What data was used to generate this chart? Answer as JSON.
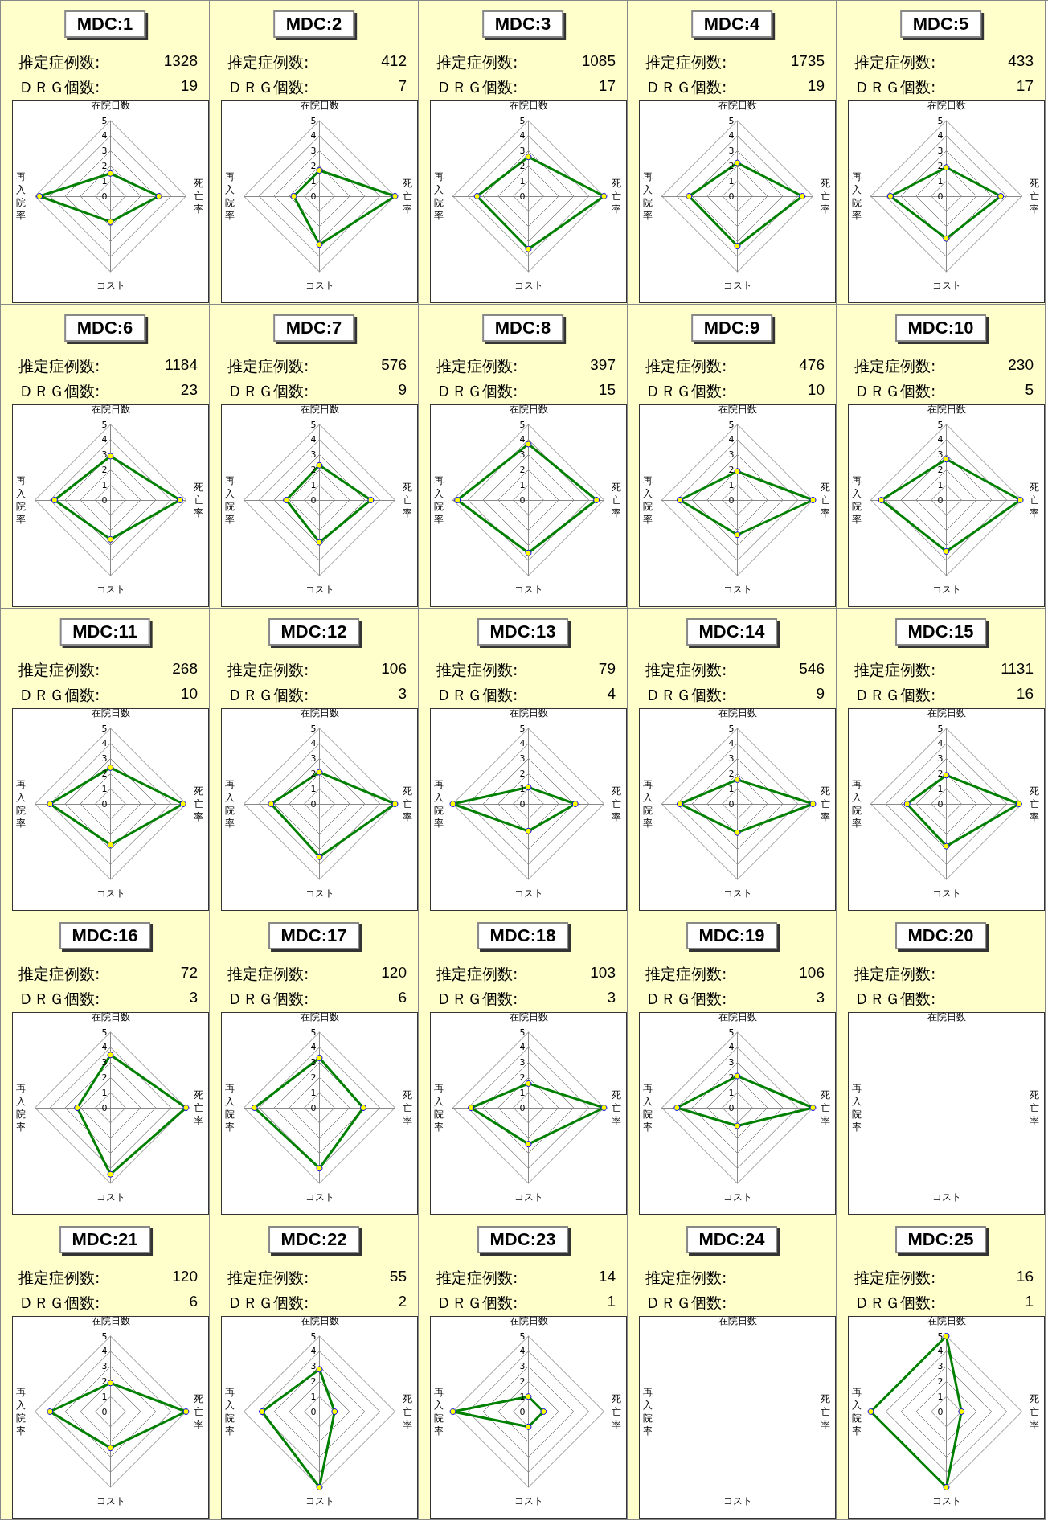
{
  "chart_data": [
    {
      "type": "radar",
      "title": "MDC:1",
      "annotations": [
        "推定症例数:",
        "1328",
        "ＤＲＧ個数:",
        "19"
      ],
      "categories": [
        "在院日数",
        "死亡率",
        "コスト",
        "再入院率"
      ],
      "series": [
        {
          "color": "#008000",
          "values": [
            1.5,
            3.2,
            1.7,
            4.7
          ]
        }
      ],
      "ylim": [
        0,
        5
      ],
      "yticks": [
        0,
        1,
        2,
        3,
        4,
        5
      ],
      "grid": true,
      "marker": "circle"
    },
    {
      "type": "radar",
      "title": "MDC:2",
      "annotations": [
        "推定症例数:",
        "412",
        "ＤＲＧ個数:",
        "7"
      ],
      "categories": [
        "在院日数",
        "死亡率",
        "コスト",
        "再入院率"
      ],
      "series": [
        {
          "color": "#008000",
          "values": [
            1.7,
            5.0,
            3.2,
            1.7
          ]
        }
      ],
      "ylim": [
        0,
        5
      ],
      "yticks": [
        0,
        1,
        2,
        3,
        4,
        5
      ],
      "grid": true,
      "marker": "circle"
    },
    {
      "type": "radar",
      "title": "MDC:3",
      "annotations": [
        "推定症例数:",
        "1085",
        "ＤＲＧ個数:",
        "17"
      ],
      "categories": [
        "在院日数",
        "死亡率",
        "コスト",
        "再入院率"
      ],
      "series": [
        {
          "color": "#008000",
          "values": [
            2.6,
            5.0,
            3.5,
            3.4
          ]
        }
      ],
      "ylim": [
        0,
        5
      ],
      "yticks": [
        0,
        1,
        2,
        3,
        4,
        5
      ],
      "grid": true,
      "marker": "circle"
    },
    {
      "type": "radar",
      "title": "MDC:4",
      "annotations": [
        "推定症例数:",
        "1735",
        "ＤＲＧ個数:",
        "19"
      ],
      "categories": [
        "在院日数",
        "死亡率",
        "コスト",
        "再入院率"
      ],
      "series": [
        {
          "color": "#008000",
          "values": [
            2.2,
            4.3,
            3.3,
            3.2
          ]
        }
      ],
      "ylim": [
        0,
        5
      ],
      "yticks": [
        0,
        1,
        2,
        3,
        4,
        5
      ],
      "grid": true,
      "marker": "circle"
    },
    {
      "type": "radar",
      "title": "MDC:5",
      "annotations": [
        "推定症例数:",
        "433",
        "ＤＲＧ個数:",
        "17"
      ],
      "categories": [
        "在院日数",
        "死亡率",
        "コスト",
        "再入院率"
      ],
      "series": [
        {
          "color": "#008000",
          "values": [
            1.9,
            3.6,
            2.8,
            3.7
          ]
        }
      ],
      "ylim": [
        0,
        5
      ],
      "yticks": [
        0,
        1,
        2,
        3,
        4,
        5
      ],
      "grid": true,
      "marker": "circle"
    },
    {
      "type": "radar",
      "title": "MDC:6",
      "annotations": [
        "推定症例数:",
        "1184",
        "ＤＲＧ個数:",
        "23"
      ],
      "categories": [
        "在院日数",
        "死亡率",
        "コスト",
        "再入院率"
      ],
      "series": [
        {
          "color": "#008000",
          "values": [
            2.9,
            4.6,
            2.6,
            3.7
          ]
        }
      ],
      "ylim": [
        0,
        5
      ],
      "yticks": [
        0,
        1,
        2,
        3,
        4,
        5
      ],
      "grid": true,
      "marker": "circle"
    },
    {
      "type": "radar",
      "title": "MDC:7",
      "annotations": [
        "推定症例数:",
        "576",
        "ＤＲＧ個数:",
        "9"
      ],
      "categories": [
        "在院日数",
        "死亡率",
        "コスト",
        "再入院率"
      ],
      "series": [
        {
          "color": "#008000",
          "values": [
            2.3,
            3.4,
            2.8,
            2.2
          ]
        }
      ],
      "ylim": [
        0,
        5
      ],
      "yticks": [
        0,
        1,
        2,
        3,
        4,
        5
      ],
      "grid": true,
      "marker": "circle"
    },
    {
      "type": "radar",
      "title": "MDC:8",
      "annotations": [
        "推定症例数:",
        "397",
        "ＤＲＧ個数:",
        "15"
      ],
      "categories": [
        "在院日数",
        "死亡率",
        "コスト",
        "再入院率"
      ],
      "series": [
        {
          "color": "#008000",
          "values": [
            3.7,
            4.5,
            3.5,
            4.7
          ]
        }
      ],
      "ylim": [
        0,
        5
      ],
      "yticks": [
        0,
        1,
        2,
        3,
        4,
        5
      ],
      "grid": true,
      "marker": "circle"
    },
    {
      "type": "radar",
      "title": "MDC:9",
      "annotations": [
        "推定症例数:",
        "476",
        "ＤＲＧ個数:",
        "10"
      ],
      "categories": [
        "在院日数",
        "死亡率",
        "コスト",
        "再入院率"
      ],
      "series": [
        {
          "color": "#008000",
          "values": [
            1.9,
            5.0,
            2.3,
            3.8
          ]
        }
      ],
      "ylim": [
        0,
        5
      ],
      "yticks": [
        0,
        1,
        2,
        3,
        4,
        5
      ],
      "grid": true,
      "marker": "circle"
    },
    {
      "type": "radar",
      "title": "MDC:10",
      "annotations": [
        "推定症例数:",
        "230",
        "ＤＲＧ個数:",
        "5"
      ],
      "categories": [
        "在院日数",
        "死亡率",
        "コスト",
        "再入院率"
      ],
      "series": [
        {
          "color": "#008000",
          "values": [
            2.7,
            4.9,
            3.4,
            4.3
          ]
        }
      ],
      "ylim": [
        0,
        5
      ],
      "yticks": [
        0,
        1,
        2,
        3,
        4,
        5
      ],
      "grid": true,
      "marker": "circle"
    },
    {
      "type": "radar",
      "title": "MDC:11",
      "annotations": [
        "推定症例数:",
        "268",
        "ＤＲＧ個数:",
        "10"
      ],
      "categories": [
        "在院日数",
        "死亡率",
        "コスト",
        "再入院率"
      ],
      "series": [
        {
          "color": "#008000",
          "values": [
            2.4,
            4.8,
            2.7,
            4.0
          ]
        }
      ],
      "ylim": [
        0,
        5
      ],
      "yticks": [
        0,
        1,
        2,
        3,
        4,
        5
      ],
      "grid": true,
      "marker": "circle"
    },
    {
      "type": "radar",
      "title": "MDC:12",
      "annotations": [
        "推定症例数:",
        "106",
        "ＤＲＧ個数:",
        "3"
      ],
      "categories": [
        "在院日数",
        "死亡率",
        "コスト",
        "再入院率"
      ],
      "series": [
        {
          "color": "#008000",
          "values": [
            2.1,
            5.0,
            3.5,
            3.2
          ]
        }
      ],
      "ylim": [
        0,
        5
      ],
      "yticks": [
        0,
        1,
        2,
        3,
        4,
        5
      ],
      "grid": true,
      "marker": "circle"
    },
    {
      "type": "radar",
      "title": "MDC:13",
      "annotations": [
        "推定症例数:",
        "79",
        "ＤＲＧ個数:",
        "4"
      ],
      "categories": [
        "在院日数",
        "死亡率",
        "コスト",
        "再入院率"
      ],
      "series": [
        {
          "color": "#008000",
          "values": [
            1.1,
            3.1,
            1.8,
            5.0
          ]
        }
      ],
      "ylim": [
        0,
        5
      ],
      "yticks": [
        0,
        1,
        2,
        3,
        4,
        5
      ],
      "grid": true,
      "marker": "circle"
    },
    {
      "type": "radar",
      "title": "MDC:14",
      "annotations": [
        "推定症例数:",
        "546",
        "ＤＲＧ個数:",
        "9"
      ],
      "categories": [
        "在院日数",
        "死亡率",
        "コスト",
        "再入院率"
      ],
      "series": [
        {
          "color": "#008000",
          "values": [
            1.6,
            5.0,
            1.9,
            3.8
          ]
        }
      ],
      "ylim": [
        0,
        5
      ],
      "yticks": [
        0,
        1,
        2,
        3,
        4,
        5
      ],
      "grid": true,
      "marker": "circle"
    },
    {
      "type": "radar",
      "title": "MDC:15",
      "annotations": [
        "推定症例数:",
        "1131",
        "ＤＲＧ個数:",
        "16"
      ],
      "categories": [
        "在院日数",
        "死亡率",
        "コスト",
        "再入院率"
      ],
      "series": [
        {
          "color": "#008000",
          "values": [
            1.9,
            4.8,
            2.8,
            2.6
          ]
        }
      ],
      "ylim": [
        0,
        5
      ],
      "yticks": [
        0,
        1,
        2,
        3,
        4,
        5
      ],
      "grid": true,
      "marker": "circle"
    },
    {
      "type": "radar",
      "title": "MDC:16",
      "annotations": [
        "推定症例数:",
        "72",
        "ＤＲＧ個数:",
        "3"
      ],
      "categories": [
        "在院日数",
        "死亡率",
        "コスト",
        "再入院率"
      ],
      "series": [
        {
          "color": "#008000",
          "values": [
            3.5,
            5.0,
            4.4,
            2.2
          ]
        }
      ],
      "ylim": [
        0,
        5
      ],
      "yticks": [
        0,
        1,
        2,
        3,
        4,
        5
      ],
      "grid": true,
      "marker": "circle"
    },
    {
      "type": "radar",
      "title": "MDC:17",
      "annotations": [
        "推定症例数:",
        "120",
        "ＤＲＧ個数:",
        "6"
      ],
      "categories": [
        "在院日数",
        "死亡率",
        "コスト",
        "再入院率"
      ],
      "series": [
        {
          "color": "#008000",
          "values": [
            3.3,
            2.9,
            4.0,
            4.3
          ]
        }
      ],
      "ylim": [
        0,
        5
      ],
      "yticks": [
        0,
        1,
        2,
        3,
        4,
        5
      ],
      "grid": true,
      "marker": "circle"
    },
    {
      "type": "radar",
      "title": "MDC:18",
      "annotations": [
        "推定症例数:",
        "103",
        "ＤＲＧ個数:",
        "3"
      ],
      "categories": [
        "在院日数",
        "死亡率",
        "コスト",
        "再入院率"
      ],
      "series": [
        {
          "color": "#008000",
          "values": [
            1.6,
            5.0,
            2.4,
            3.8
          ]
        }
      ],
      "ylim": [
        0,
        5
      ],
      "yticks": [
        0,
        1,
        2,
        3,
        4,
        5
      ],
      "grid": true,
      "marker": "circle"
    },
    {
      "type": "radar",
      "title": "MDC:19",
      "annotations": [
        "推定症例数:",
        "106",
        "ＤＲＧ個数:",
        "3"
      ],
      "categories": [
        "在院日数",
        "死亡率",
        "コスト",
        "再入院率"
      ],
      "series": [
        {
          "color": "#008000",
          "values": [
            2.1,
            5.0,
            1.2,
            4.0
          ]
        }
      ],
      "ylim": [
        0,
        5
      ],
      "yticks": [
        0,
        1,
        2,
        3,
        4,
        5
      ],
      "grid": true,
      "marker": "circle"
    },
    {
      "type": "other",
      "title": "MDC:20",
      "annotations": [
        "推定症例数:",
        "ＤＲＧ個数:"
      ],
      "categories": [
        "在院日数",
        "死亡率",
        "コスト",
        "再入院率"
      ]
    },
    {
      "type": "radar",
      "title": "MDC:21",
      "annotations": [
        "推定症例数:",
        "120",
        "ＤＲＧ個数:",
        "6"
      ],
      "categories": [
        "在院日数",
        "死亡率",
        "コスト",
        "再入院率"
      ],
      "series": [
        {
          "color": "#008000",
          "values": [
            1.9,
            5.0,
            2.4,
            4.0
          ]
        }
      ],
      "ylim": [
        0,
        5
      ],
      "yticks": [
        0,
        1,
        2,
        3,
        4,
        5
      ],
      "grid": true,
      "marker": "circle"
    },
    {
      "type": "radar",
      "title": "MDC:22",
      "annotations": [
        "推定症例数:",
        "55",
        "ＤＲＧ個数:",
        "2"
      ],
      "categories": [
        "在院日数",
        "死亡率",
        "コスト",
        "再入院率"
      ],
      "series": [
        {
          "color": "#008000",
          "values": [
            2.8,
            1.0,
            5.0,
            3.8
          ]
        }
      ],
      "ylim": [
        0,
        5
      ],
      "yticks": [
        0,
        1,
        2,
        3,
        4,
        5
      ],
      "grid": true,
      "marker": "circle"
    },
    {
      "type": "radar",
      "title": "MDC:23",
      "annotations": [
        "推定症例数:",
        "14",
        "ＤＲＧ個数:",
        "1"
      ],
      "categories": [
        "在院日数",
        "死亡率",
        "コスト",
        "再入院率"
      ],
      "series": [
        {
          "color": "#008000",
          "values": [
            1.0,
            1.0,
            1.0,
            5.0
          ]
        }
      ],
      "ylim": [
        0,
        5
      ],
      "yticks": [
        0,
        1,
        2,
        3,
        4,
        5
      ],
      "grid": true,
      "marker": "circle"
    },
    {
      "type": "other",
      "title": "MDC:24",
      "annotations": [
        "推定症例数:",
        "ＤＲＧ個数:"
      ],
      "categories": [
        "在院日数",
        "死亡率",
        "コスト",
        "再入院率"
      ]
    },
    {
      "type": "radar",
      "title": "MDC:25",
      "annotations": [
        "推定症例数:",
        "16",
        "ＤＲＧ個数:",
        "1"
      ],
      "categories": [
        "在院日数",
        "死亡率",
        "コスト",
        "再入院率"
      ],
      "series": [
        {
          "color": "#008000",
          "values": [
            5.0,
            1.0,
            5.0,
            5.0
          ]
        }
      ],
      "ylim": [
        0,
        5
      ],
      "yticks": [
        0,
        1,
        2,
        3,
        4,
        5
      ],
      "grid": true,
      "marker": "circle"
    }
  ]
}
